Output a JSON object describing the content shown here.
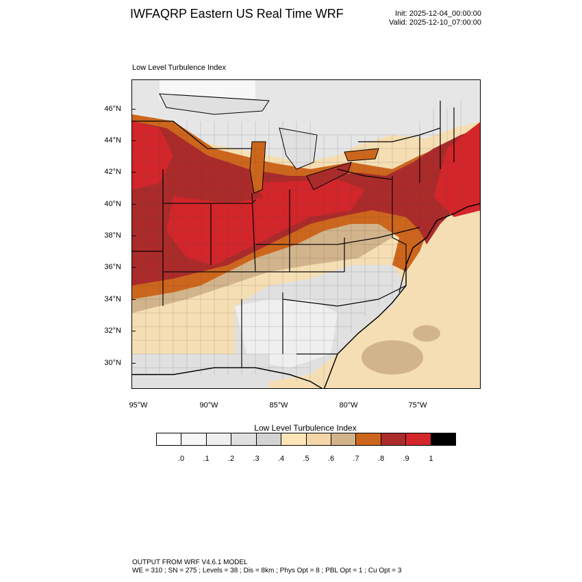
{
  "title": "IWFAQRP Eastern US Real Time WRF",
  "init": "Init: 2025-12-04_00:00:00",
  "valid": "Valid: 2025-12-10_07:00:00",
  "subtitle": "Low Level Turbulence Index",
  "map": {
    "lat_labels": [
      "46°N",
      "44°N",
      "42°N",
      "40°N",
      "38°N",
      "36°N",
      "34°N",
      "32°N",
      "30°N"
    ],
    "lon_labels": [
      "95°W",
      "90°W",
      "85°W",
      "80°W",
      "75°W"
    ],
    "colors": {
      "ocean_low": "#f5deb3",
      "ocean_mid": "#d2b48c",
      "high": "#cd661d",
      "very_high": "#ab2b2b",
      "extreme": "#d2262b",
      "lake": "#e0e0e0",
      "land_pale": "#fbe6c0",
      "land_grey": "#e6e6e6"
    }
  },
  "colorbar": {
    "title": "Low Level Turbulence Index",
    "colors": [
      "#ffffff",
      "#f7f7f7",
      "#efefef",
      "#e0e0e0",
      "#d3d3d3",
      "#fde5b8",
      "#f5d6a8",
      "#d2b48c",
      "#cd661d",
      "#ab2b2b",
      "#d2262b",
      "#000000"
    ],
    "labels": [
      ".0",
      ".1",
      ".2",
      ".3",
      ".4",
      ".5",
      ".6",
      ".7",
      ".8",
      ".9",
      "1"
    ]
  },
  "footer": {
    "line1": "OUTPUT FROM WRF V4.6.1 MODEL",
    "line2": "WE = 310 ; SN = 275 ; Levels = 38 ; Dis = 8km ; Phys Opt = 8 ; PBL Opt = 1 ; Cu Opt = 3"
  }
}
